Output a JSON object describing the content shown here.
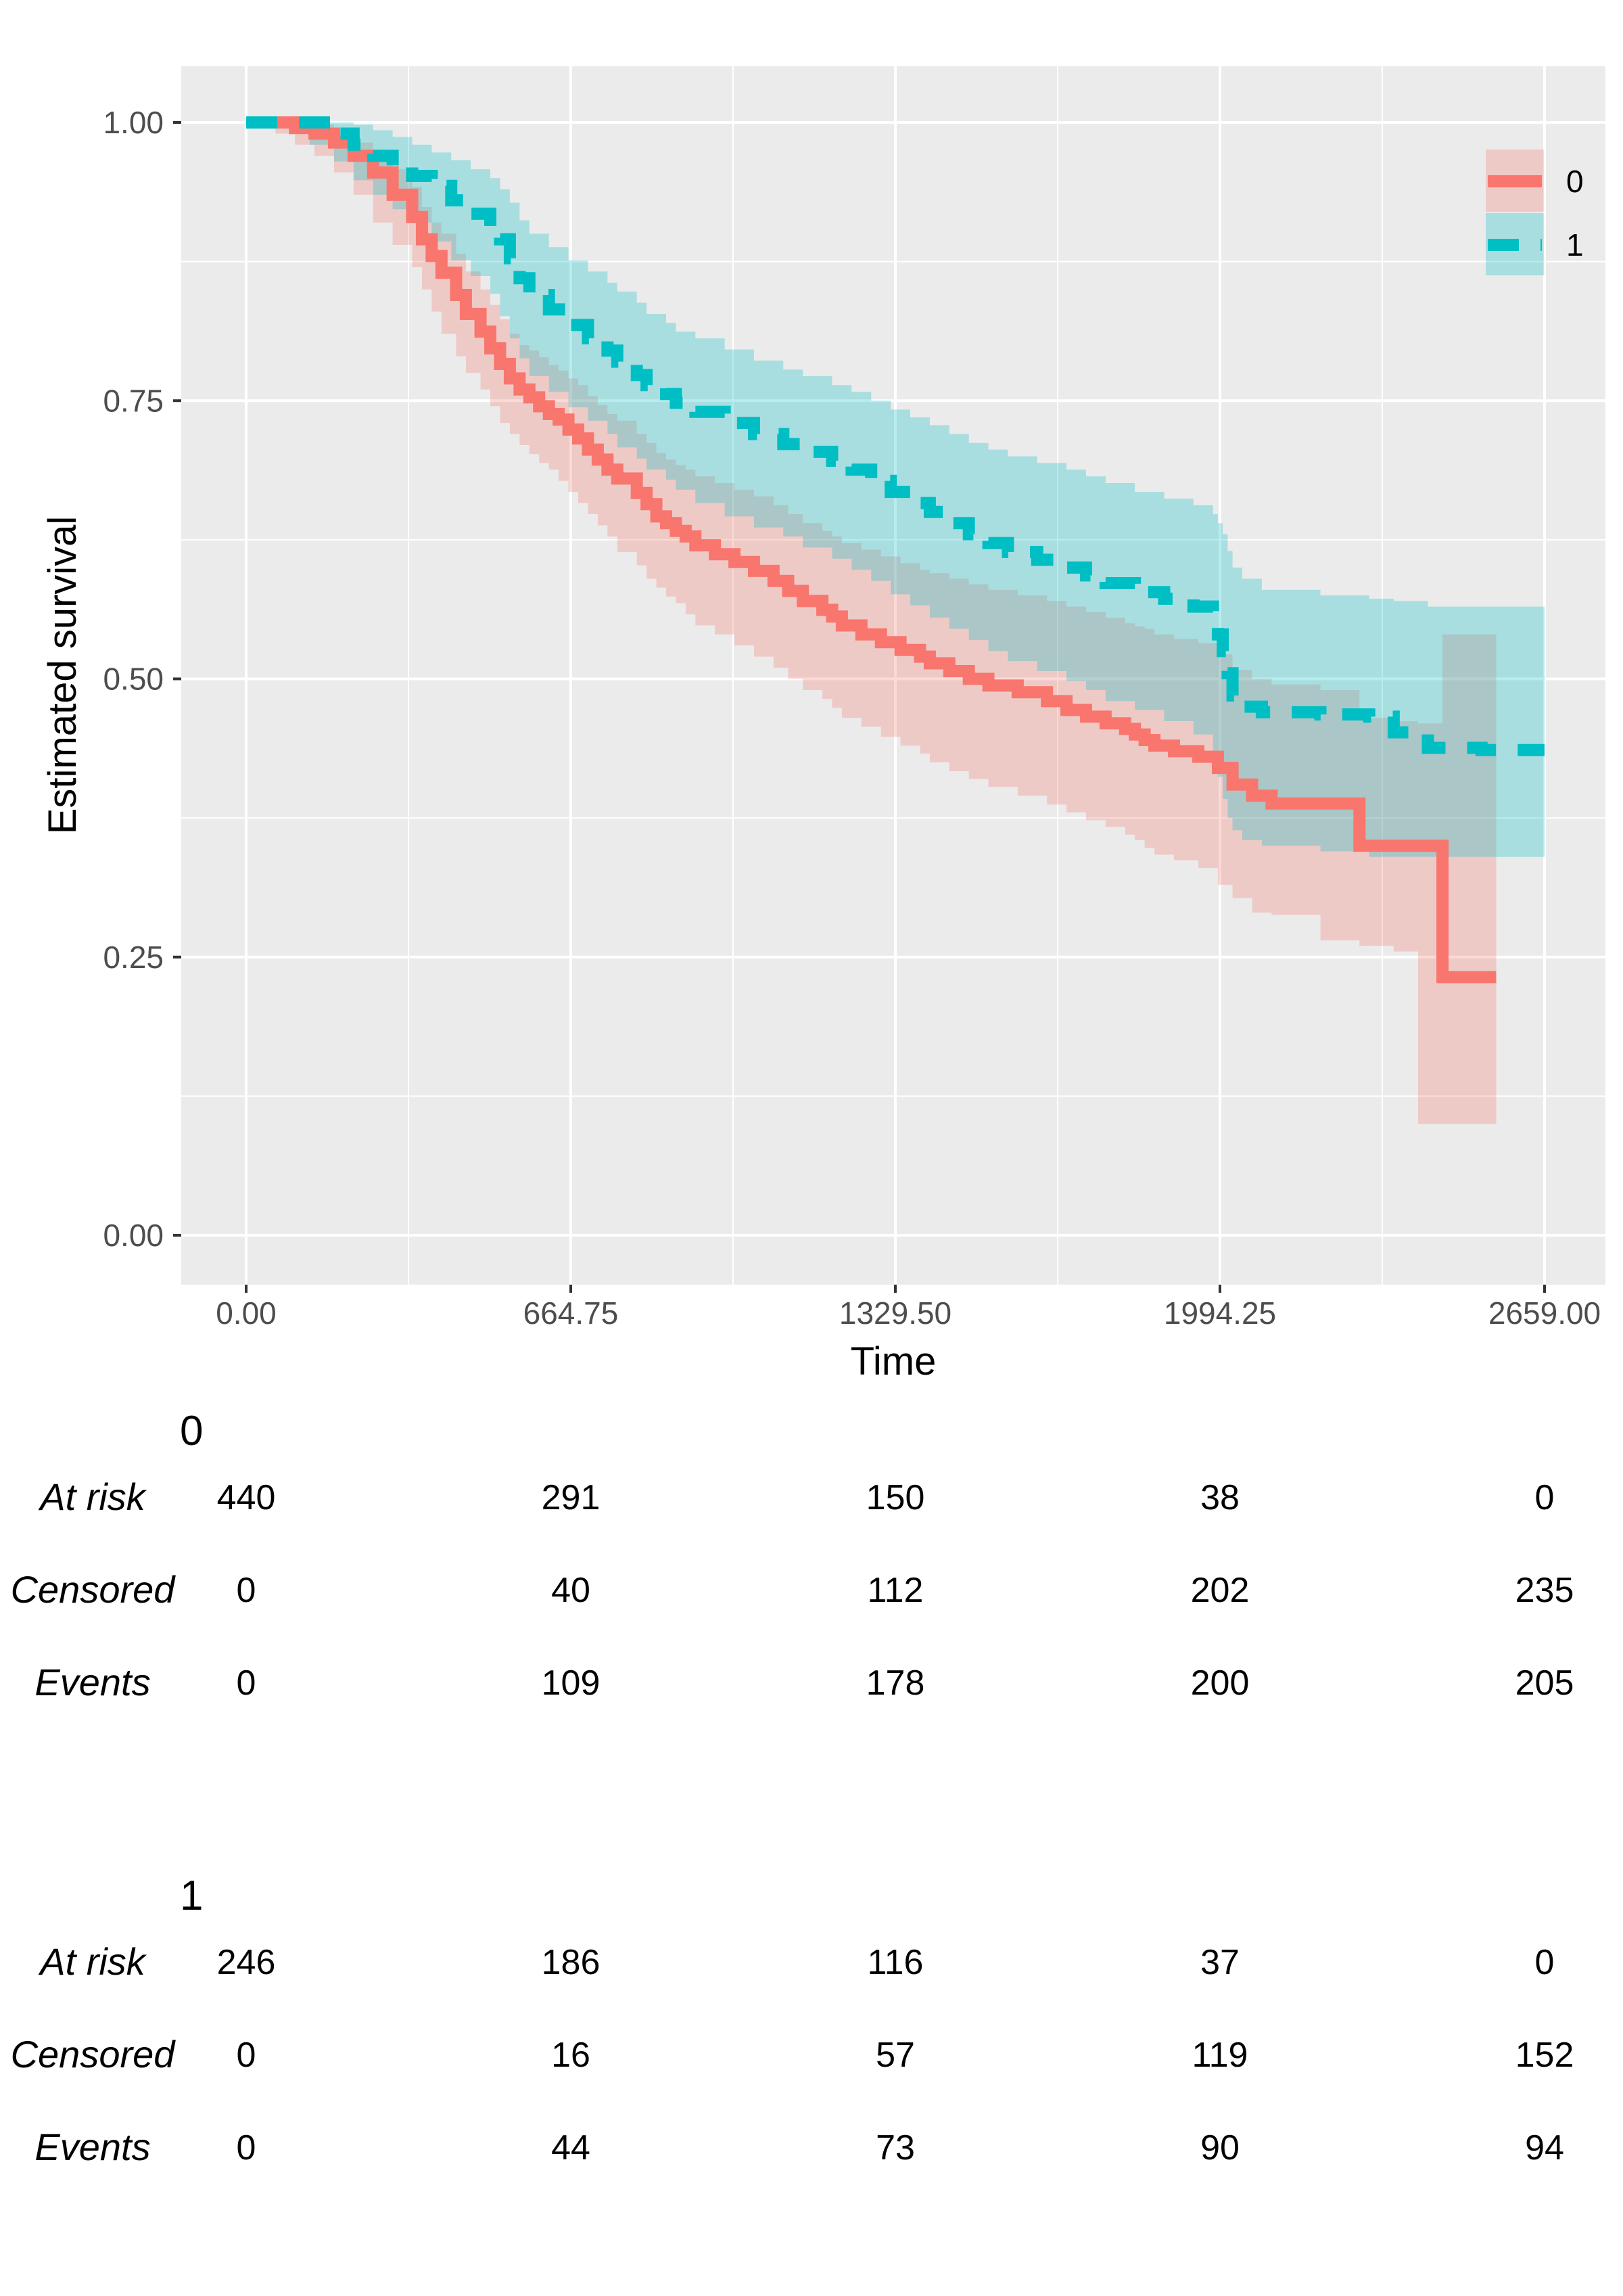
{
  "chart_data": {
    "type": "line",
    "subtype": "kaplan-meier step curve with confidence bands",
    "title": "",
    "xlabel": "Time",
    "ylabel": "Estimated survival",
    "xlim": [
      0,
      2659
    ],
    "ylim": [
      0,
      1.0
    ],
    "x_ticks": [
      "0.00",
      "664.75",
      "1329.50",
      "1994.25",
      "2659.00"
    ],
    "x_tick_values": [
      0,
      664.75,
      1329.5,
      1994.25,
      2659
    ],
    "y_ticks": [
      "0.00",
      "0.25",
      "0.50",
      "0.75",
      "1.00"
    ],
    "y_tick_values": [
      0,
      0.25,
      0.5,
      0.75,
      1.0
    ],
    "grid": true,
    "legend_position": "top-right",
    "series": [
      {
        "name": "0",
        "color": "#F8766D",
        "band_color": "#F8766D",
        "linestyle": "solid",
        "x": [
          0,
          60,
          100,
          140,
          180,
          220,
          260,
          300,
          340,
          360,
          380,
          400,
          430,
          450,
          480,
          500,
          520,
          540,
          560,
          580,
          600,
          620,
          640,
          660,
          680,
          700,
          720,
          740,
          760,
          800,
          820,
          840,
          860,
          880,
          900,
          920,
          960,
          1000,
          1040,
          1080,
          1110,
          1140,
          1180,
          1200,
          1220,
          1260,
          1300,
          1340,
          1380,
          1400,
          1440,
          1480,
          1520,
          1580,
          1640,
          1680,
          1720,
          1760,
          1800,
          1820,
          1840,
          1860,
          1900,
          1950,
          1990,
          2020,
          2060,
          2100,
          2200,
          2280,
          2350,
          2400,
          2450,
          2560
        ],
        "y": [
          1.0,
          1.0,
          0.995,
          0.99,
          0.982,
          0.97,
          0.955,
          0.935,
          0.915,
          0.895,
          0.88,
          0.865,
          0.845,
          0.828,
          0.812,
          0.797,
          0.783,
          0.77,
          0.76,
          0.753,
          0.745,
          0.738,
          0.733,
          0.724,
          0.716,
          0.706,
          0.697,
          0.688,
          0.68,
          0.667,
          0.657,
          0.646,
          0.64,
          0.633,
          0.628,
          0.62,
          0.612,
          0.605,
          0.597,
          0.588,
          0.579,
          0.57,
          0.562,
          0.556,
          0.548,
          0.54,
          0.533,
          0.526,
          0.52,
          0.514,
          0.507,
          0.5,
          0.494,
          0.488,
          0.48,
          0.472,
          0.466,
          0.46,
          0.455,
          0.45,
          0.445,
          0.44,
          0.435,
          0.43,
          0.42,
          0.405,
          0.395,
          0.388,
          0.388,
          0.35,
          0.35,
          0.35,
          0.232,
          0.232
        ],
        "ci_lower": [
          1.0,
          1.0,
          0.99,
          0.98,
          0.97,
          0.955,
          0.935,
          0.91,
          0.89,
          0.87,
          0.85,
          0.83,
          0.81,
          0.79,
          0.775,
          0.76,
          0.745,
          0.73,
          0.72,
          0.71,
          0.702,
          0.694,
          0.688,
          0.678,
          0.668,
          0.658,
          0.648,
          0.638,
          0.628,
          0.614,
          0.602,
          0.59,
          0.582,
          0.574,
          0.568,
          0.558,
          0.548,
          0.54,
          0.53,
          0.52,
          0.51,
          0.5,
          0.49,
          0.482,
          0.474,
          0.465,
          0.457,
          0.448,
          0.44,
          0.433,
          0.425,
          0.417,
          0.41,
          0.403,
          0.395,
          0.387,
          0.38,
          0.373,
          0.367,
          0.36,
          0.355,
          0.348,
          0.342,
          0.337,
          0.33,
          0.315,
          0.303,
          0.29,
          0.288,
          0.265,
          0.26,
          0.255,
          0.1,
          0.1
        ],
        "ci_upper": [
          1.0,
          1.0,
          1.0,
          0.998,
          0.99,
          0.982,
          0.972,
          0.958,
          0.942,
          0.924,
          0.91,
          0.9,
          0.882,
          0.866,
          0.85,
          0.836,
          0.823,
          0.81,
          0.8,
          0.795,
          0.789,
          0.782,
          0.777,
          0.77,
          0.764,
          0.754,
          0.746,
          0.738,
          0.732,
          0.72,
          0.712,
          0.703,
          0.697,
          0.692,
          0.688,
          0.682,
          0.676,
          0.67,
          0.664,
          0.656,
          0.648,
          0.64,
          0.633,
          0.628,
          0.622,
          0.616,
          0.61,
          0.604,
          0.598,
          0.595,
          0.59,
          0.585,
          0.58,
          0.575,
          0.57,
          0.565,
          0.56,
          0.555,
          0.55,
          0.547,
          0.545,
          0.54,
          0.536,
          0.532,
          0.522,
          0.508,
          0.5,
          0.495,
          0.49,
          0.465,
          0.462,
          0.46,
          0.54,
          0.54
        ]
      },
      {
        "name": "1",
        "color": "#00BFC4",
        "band_color": "#00BFC4",
        "linestyle": "dashed",
        "x": [
          0,
          130,
          180,
          220,
          260,
          300,
          340,
          380,
          420,
          460,
          500,
          520,
          540,
          560,
          580,
          620,
          660,
          700,
          740,
          760,
          800,
          820,
          860,
          880,
          920,
          980,
          1040,
          1100,
          1140,
          1200,
          1240,
          1280,
          1320,
          1360,
          1400,
          1440,
          1480,
          1520,
          1560,
          1620,
          1680,
          1720,
          1760,
          1820,
          1880,
          1940,
          1980,
          1990,
          2000,
          2010,
          2020,
          2040,
          2080,
          2200,
          2300,
          2350,
          2420,
          2530,
          2659
        ],
        "y": [
          1.0,
          1.0,
          0.99,
          0.98,
          0.97,
          0.96,
          0.952,
          0.943,
          0.93,
          0.918,
          0.907,
          0.895,
          0.878,
          0.86,
          0.845,
          0.832,
          0.818,
          0.806,
          0.795,
          0.785,
          0.773,
          0.764,
          0.756,
          0.748,
          0.74,
          0.73,
          0.72,
          0.711,
          0.704,
          0.696,
          0.688,
          0.678,
          0.668,
          0.658,
          0.65,
          0.64,
          0.63,
          0.622,
          0.614,
          0.607,
          0.6,
          0.593,
          0.586,
          0.578,
          0.572,
          0.565,
          0.555,
          0.54,
          0.525,
          0.505,
          0.485,
          0.475,
          0.47,
          0.468,
          0.466,
          0.452,
          0.438,
          0.436,
          0.436
        ],
        "ci_lower": [
          1.0,
          1.0,
          0.98,
          0.965,
          0.948,
          0.935,
          0.922,
          0.91,
          0.893,
          0.876,
          0.862,
          0.846,
          0.826,
          0.806,
          0.788,
          0.772,
          0.758,
          0.744,
          0.732,
          0.72,
          0.708,
          0.698,
          0.688,
          0.679,
          0.67,
          0.658,
          0.646,
          0.636,
          0.628,
          0.618,
          0.608,
          0.598,
          0.588,
          0.576,
          0.566,
          0.555,
          0.545,
          0.535,
          0.525,
          0.516,
          0.507,
          0.498,
          0.49,
          0.48,
          0.472,
          0.462,
          0.45,
          0.43,
          0.412,
          0.392,
          0.375,
          0.364,
          0.355,
          0.35,
          0.345,
          0.34,
          0.34,
          0.34,
          0.34
        ],
        "ci_upper": [
          1.0,
          1.0,
          1.0,
          0.998,
          0.993,
          0.987,
          0.98,
          0.973,
          0.966,
          0.958,
          0.95,
          0.94,
          0.928,
          0.912,
          0.9,
          0.888,
          0.876,
          0.866,
          0.856,
          0.848,
          0.838,
          0.828,
          0.82,
          0.812,
          0.806,
          0.796,
          0.786,
          0.778,
          0.772,
          0.764,
          0.758,
          0.75,
          0.742,
          0.735,
          0.728,
          0.72,
          0.712,
          0.706,
          0.7,
          0.694,
          0.688,
          0.682,
          0.676,
          0.668,
          0.662,
          0.656,
          0.648,
          0.64,
          0.63,
          0.615,
          0.6,
          0.59,
          0.58,
          0.575,
          0.572,
          0.57,
          0.565,
          0.565,
          0.565
        ]
      }
    ]
  },
  "risk_tables": [
    {
      "title": "0",
      "rows": [
        {
          "label": "At risk",
          "values": [
            "440",
            "291",
            "150",
            "38",
            "0"
          ]
        },
        {
          "label": "Censored",
          "values": [
            "0",
            "40",
            "112",
            "202",
            "235"
          ]
        },
        {
          "label": "Events",
          "values": [
            "0",
            "109",
            "178",
            "200",
            "205"
          ]
        }
      ]
    },
    {
      "title": "1",
      "rows": [
        {
          "label": "At risk",
          "values": [
            "246",
            "186",
            "116",
            "37",
            "0"
          ]
        },
        {
          "label": "Censored",
          "values": [
            "0",
            "16",
            "57",
            "119",
            "152"
          ]
        },
        {
          "label": "Events",
          "values": [
            "0",
            "44",
            "73",
            "90",
            "94"
          ]
        }
      ]
    }
  ]
}
